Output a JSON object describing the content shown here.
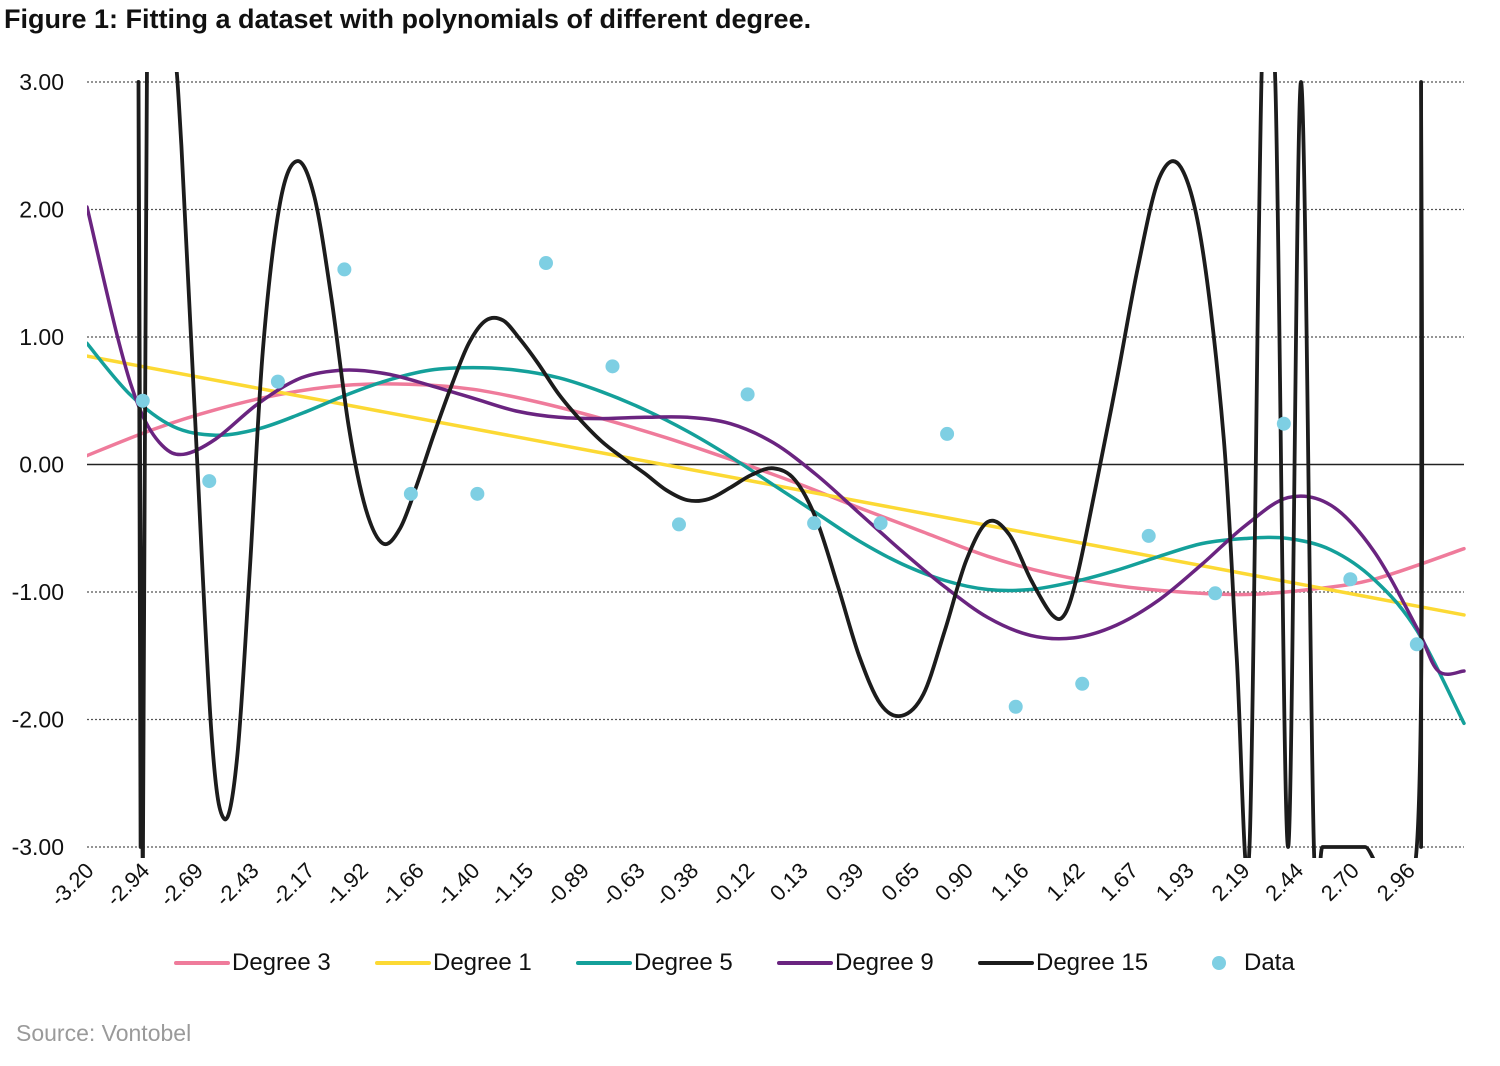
{
  "title": "Figure 1: Fitting a dataset with polynomials of different degree.",
  "source": "Source: Vontobel",
  "chart_data": {
    "type": "line",
    "title": "Figure 1: Fitting a dataset with polynomials of different degree.",
    "xlabel": "",
    "ylabel": "",
    "xlim": [
      -3.2,
      3.22
    ],
    "ylim": [
      -3,
      3
    ],
    "x_tick_labels": [
      "-3.20",
      "-2.94",
      "-2.69",
      "-2.43",
      "-2.17",
      "-1.92",
      "-1.66",
      "-1.40",
      "-1.15",
      "-0.89",
      "-0.63",
      "-0.38",
      "-0.12",
      "0.13",
      "0.39",
      "0.65",
      "0.90",
      "1.16",
      "1.42",
      "1.67",
      "1.93",
      "2.19",
      "2.44",
      "2.70",
      "2.96"
    ],
    "y_tick_labels": [
      "3.00",
      "2.00",
      "1.00",
      "0.00",
      "-1.00",
      "-2.00",
      "-3.00"
    ],
    "y_ticks": [
      3,
      2,
      1,
      0,
      -1,
      -2,
      -3
    ],
    "grid": "dotted horizontal",
    "legend_position": "bottom",
    "series": [
      {
        "name": "Degree 3",
        "color": "#ef7b9b",
        "x": [
          -3.2,
          -2.9,
          -2.6,
          -2.3,
          -2.0,
          -1.7,
          -1.4,
          -1.1,
          -0.8,
          -0.5,
          -0.2,
          0.1,
          0.4,
          0.7,
          1.0,
          1.3,
          1.6,
          1.9,
          2.2,
          2.5,
          2.8,
          3.22
        ],
        "y": [
          0.07,
          0.27,
          0.43,
          0.55,
          0.62,
          0.63,
          0.59,
          0.49,
          0.36,
          0.21,
          0.04,
          -0.14,
          -0.34,
          -0.53,
          -0.72,
          -0.86,
          -0.95,
          -1.0,
          -1.02,
          -0.98,
          -0.9,
          -0.66
        ]
      },
      {
        "name": "Degree 1",
        "color": "#fcd934",
        "x": [
          -3.2,
          3.22
        ],
        "y": [
          0.85,
          -1.18
        ]
      },
      {
        "name": "Degree 5",
        "color": "#14a09a",
        "x": [
          -3.2,
          -3.0,
          -2.8,
          -2.6,
          -2.4,
          -2.2,
          -2.0,
          -1.8,
          -1.6,
          -1.4,
          -1.2,
          -1.0,
          -0.8,
          -0.6,
          -0.4,
          -0.2,
          0.0,
          0.2,
          0.4,
          0.6,
          0.8,
          1.0,
          1.2,
          1.4,
          1.6,
          1.8,
          2.0,
          2.2,
          2.4,
          2.6,
          2.8,
          3.0,
          3.22
        ],
        "y": [
          0.95,
          0.55,
          0.3,
          0.23,
          0.28,
          0.4,
          0.54,
          0.66,
          0.74,
          0.76,
          0.74,
          0.68,
          0.57,
          0.43,
          0.26,
          0.06,
          -0.16,
          -0.38,
          -0.6,
          -0.78,
          -0.91,
          -0.98,
          -0.98,
          -0.92,
          -0.83,
          -0.72,
          -0.62,
          -0.58,
          -0.58,
          -0.67,
          -0.9,
          -1.3,
          -2.03
        ]
      },
      {
        "name": "Degree 9",
        "color": "#6a2480",
        "x": [
          -3.2,
          -3.05,
          -2.95,
          -2.85,
          -2.75,
          -2.6,
          -2.4,
          -2.2,
          -2.0,
          -1.8,
          -1.6,
          -1.4,
          -1.2,
          -1.0,
          -0.8,
          -0.6,
          -0.4,
          -0.2,
          0.0,
          0.2,
          0.4,
          0.6,
          0.8,
          1.0,
          1.2,
          1.4,
          1.6,
          1.8,
          2.0,
          2.2,
          2.4,
          2.6,
          2.8,
          3.0,
          3.1,
          3.22
        ],
        "y": [
          2.02,
          0.95,
          0.42,
          0.15,
          0.08,
          0.2,
          0.48,
          0.68,
          0.74,
          0.71,
          0.62,
          0.52,
          0.42,
          0.37,
          0.36,
          0.37,
          0.37,
          0.32,
          0.17,
          -0.08,
          -0.38,
          -0.68,
          -0.96,
          -1.2,
          -1.34,
          -1.36,
          -1.26,
          -1.06,
          -0.78,
          -0.48,
          -0.26,
          -0.32,
          -0.68,
          -1.28,
          -1.62,
          -1.62
        ]
      },
      {
        "name": "Degree 15",
        "color": "#1c1c1c",
        "x": [
          -2.95,
          -2.96,
          -2.94,
          -2.92,
          -2.88,
          -2.8,
          -2.76,
          -2.7,
          -2.62,
          -2.56,
          -2.5,
          -2.44,
          -2.38,
          -2.3,
          -2.22,
          -2.14,
          -2.06,
          -1.98,
          -1.9,
          -1.82,
          -1.74,
          -1.66,
          -1.58,
          -1.5,
          -1.42,
          -1.34,
          -1.26,
          -1.18,
          -1.1,
          -1.0,
          -0.9,
          -0.8,
          -0.7,
          -0.6,
          -0.5,
          -0.4,
          -0.3,
          -0.2,
          -0.1,
          0.0,
          0.1,
          0.2,
          0.3,
          0.4,
          0.5,
          0.6,
          0.7,
          0.8,
          0.9,
          1.0,
          1.1,
          1.2,
          1.3,
          1.36,
          1.42,
          1.5,
          1.6,
          1.7,
          1.8,
          1.9,
          2.0,
          2.1,
          2.16,
          2.22,
          2.28,
          2.34,
          2.4,
          2.46,
          2.52,
          2.56,
          2.62,
          2.68,
          2.72,
          2.76,
          3.0,
          3.02,
          3.02
        ],
        "y": [
          -3.0,
          3.0,
          -3.3,
          3.3,
          3.4,
          3.3,
          2.5,
          0.5,
          -2.1,
          -2.78,
          -2.3,
          -0.8,
          0.9,
          2.05,
          2.38,
          2.1,
          1.3,
          0.3,
          -0.35,
          -0.62,
          -0.5,
          -0.15,
          0.25,
          0.62,
          0.95,
          1.13,
          1.13,
          0.98,
          0.8,
          0.55,
          0.35,
          0.18,
          0.05,
          -0.07,
          -0.2,
          -0.28,
          -0.27,
          -0.18,
          -0.08,
          -0.03,
          -0.12,
          -0.43,
          -0.95,
          -1.5,
          -1.88,
          -1.97,
          -1.8,
          -1.3,
          -0.75,
          -0.45,
          -0.55,
          -0.9,
          -1.18,
          -1.17,
          -0.85,
          -0.2,
          0.65,
          1.55,
          2.25,
          2.33,
          1.7,
          0.2,
          -1.5,
          -3.0,
          3.3,
          3.0,
          -3.0,
          3.0,
          -3.0,
          -3.0,
          -3.0,
          -3.0,
          -3.0,
          -3.0,
          -3.0,
          3.0,
          -3.0
        ]
      },
      {
        "name": "Data",
        "color": "#7ecfe3",
        "type": "scatter",
        "x": [
          -2.94,
          -2.63,
          -2.31,
          -2.0,
          -1.69,
          -1.38,
          -1.06,
          -0.75,
          -0.44,
          -0.12,
          0.19,
          0.5,
          0.81,
          1.13,
          1.44,
          1.75,
          2.06,
          2.38,
          2.69,
          3.0
        ],
        "y": [
          0.5,
          -0.13,
          0.65,
          1.53,
          -0.23,
          -0.23,
          1.58,
          0.77,
          -0.47,
          0.55,
          -0.46,
          -0.46,
          0.24,
          -1.9,
          -1.72,
          -0.56,
          -1.01,
          0.32,
          -0.9,
          -1.41
        ]
      }
    ]
  }
}
